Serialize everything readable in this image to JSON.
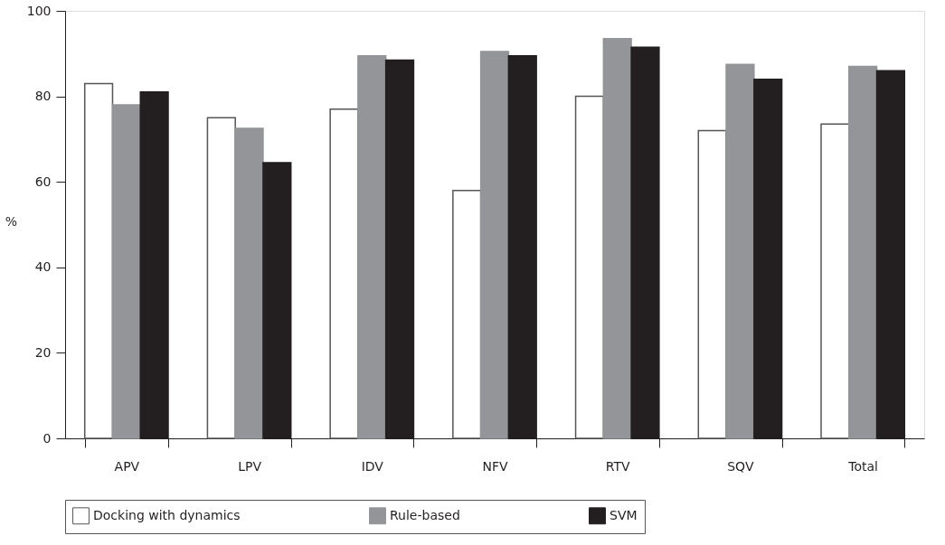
{
  "chart_data": {
    "type": "bar",
    "ylabel": "%",
    "categories": [
      "APV",
      "LPV",
      "IDV",
      "NFV",
      "RTV",
      "SQV",
      "Total"
    ],
    "series": [
      {
        "name": "Docking with dynamics",
        "color": "#ffffff",
        "values": [
          83,
          75,
          77,
          58,
          80,
          72,
          73.5
        ]
      },
      {
        "name": "Rule-based",
        "color": "#939598",
        "values": [
          78,
          72.5,
          89.5,
          90.5,
          93.5,
          87.5,
          87
        ]
      },
      {
        "name": "SVM",
        "color": "#231f20",
        "values": [
          81,
          64.5,
          88.5,
          89.5,
          91.5,
          84,
          86
        ]
      }
    ],
    "ylim": [
      0,
      100
    ],
    "yticks": [
      0,
      20,
      40,
      60,
      80,
      100
    ],
    "grid": false,
    "legend": "bottom"
  }
}
